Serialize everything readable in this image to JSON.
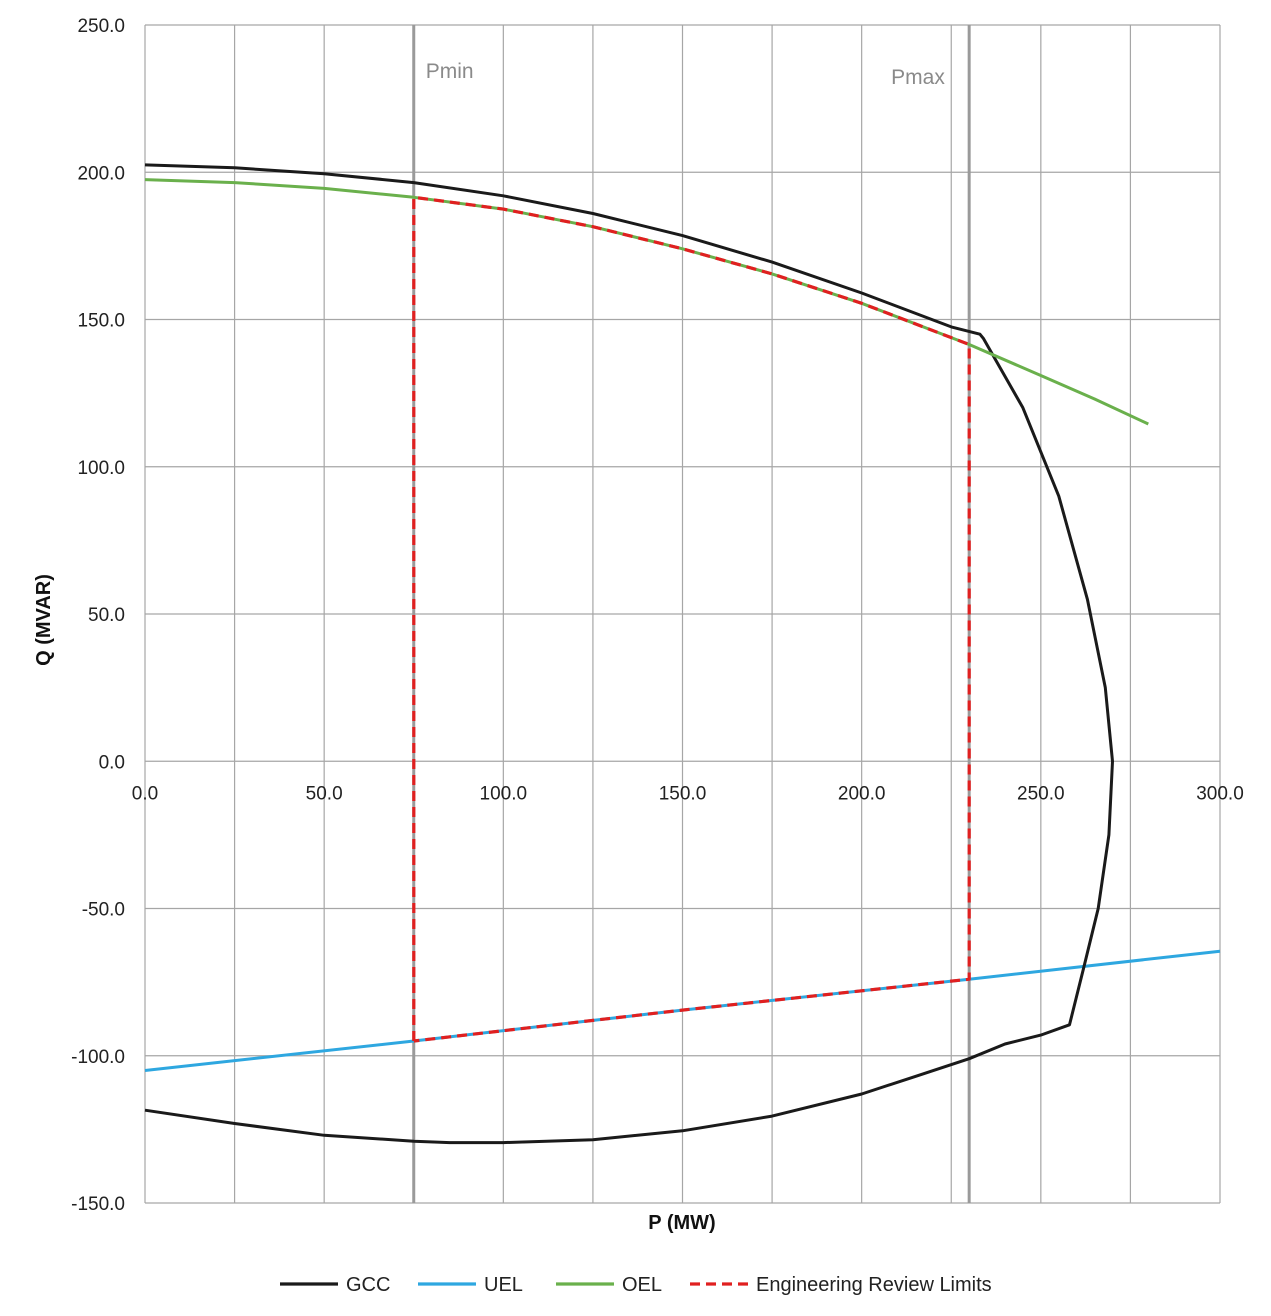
{
  "chart_data": {
    "type": "line",
    "title": "",
    "xlabel": "P (MW)",
    "ylabel": "Q (MVAR)",
    "xlim": [
      0,
      300
    ],
    "ylim": [
      -150,
      250
    ],
    "x_ticks": [
      "0.0",
      "50.0",
      "100.0",
      "150.0",
      "200.0",
      "250.0",
      "300.0"
    ],
    "y_ticks": [
      "250.0",
      "200.0",
      "150.0",
      "100.0",
      "50.0",
      "0.0",
      "-50.0",
      "-100.0",
      "-150.0"
    ],
    "grid": true,
    "legend_position": "bottom",
    "vertical_markers": [
      {
        "label": "Pmin",
        "x": 75
      },
      {
        "label": "Pmax",
        "x": 230
      }
    ],
    "series": [
      {
        "name": "GCC",
        "color": "#1a1a1a",
        "style": "solid",
        "points": [
          [
            0,
            202.5
          ],
          [
            25,
            201.5
          ],
          [
            50,
            199.5
          ],
          [
            75,
            196.5
          ],
          [
            100,
            192
          ],
          [
            125,
            186
          ],
          [
            150,
            178.5
          ],
          [
            175,
            169.5
          ],
          [
            200,
            159
          ],
          [
            225,
            147.5
          ],
          [
            233,
            145
          ],
          [
            234,
            143.5
          ],
          [
            245,
            120
          ],
          [
            255,
            90
          ],
          [
            263,
            55
          ],
          [
            268,
            25
          ],
          [
            270,
            0
          ],
          [
            269,
            -25
          ],
          [
            266,
            -50
          ],
          [
            262,
            -70
          ],
          [
            258,
            -89.5
          ],
          [
            250,
            -93
          ],
          [
            240,
            -96
          ],
          [
            230,
            -101
          ],
          [
            215,
            -107
          ],
          [
            200,
            -113
          ],
          [
            175,
            -120.5
          ],
          [
            150,
            -125.5
          ],
          [
            125,
            -128.5
          ],
          [
            100,
            -129.5
          ],
          [
            85,
            -129.5
          ],
          [
            75,
            -129
          ],
          [
            50,
            -127
          ],
          [
            25,
            -123
          ],
          [
            0,
            -118.5
          ]
        ]
      },
      {
        "name": "UEL",
        "color": "#2ea7e0",
        "style": "solid",
        "points": [
          [
            0,
            -105
          ],
          [
            75,
            -95
          ],
          [
            150,
            -84.5
          ],
          [
            230,
            -74
          ],
          [
            300,
            -64.5
          ]
        ]
      },
      {
        "name": "OEL",
        "color": "#6ab04c",
        "style": "solid",
        "points": [
          [
            0,
            197.5
          ],
          [
            25,
            196.5
          ],
          [
            50,
            194.5
          ],
          [
            75,
            191.5
          ],
          [
            100,
            187.5
          ],
          [
            125,
            181.5
          ],
          [
            150,
            174
          ],
          [
            175,
            165.5
          ],
          [
            200,
            155.5
          ],
          [
            230,
            141.5
          ],
          [
            250,
            131
          ],
          [
            265,
            123
          ],
          [
            280,
            114.5
          ]
        ]
      },
      {
        "name": "Engineering Review Limits",
        "color": "#e02020",
        "style": "dashed",
        "points": [
          [
            75,
            -95
          ],
          [
            75,
            191.5
          ],
          [
            100,
            187.5
          ],
          [
            125,
            181.5
          ],
          [
            150,
            174
          ],
          [
            175,
            165.5
          ],
          [
            200,
            155.5
          ],
          [
            230,
            141.5
          ],
          [
            230,
            -74
          ],
          [
            150,
            -84.5
          ],
          [
            75,
            -95
          ]
        ]
      }
    ]
  }
}
